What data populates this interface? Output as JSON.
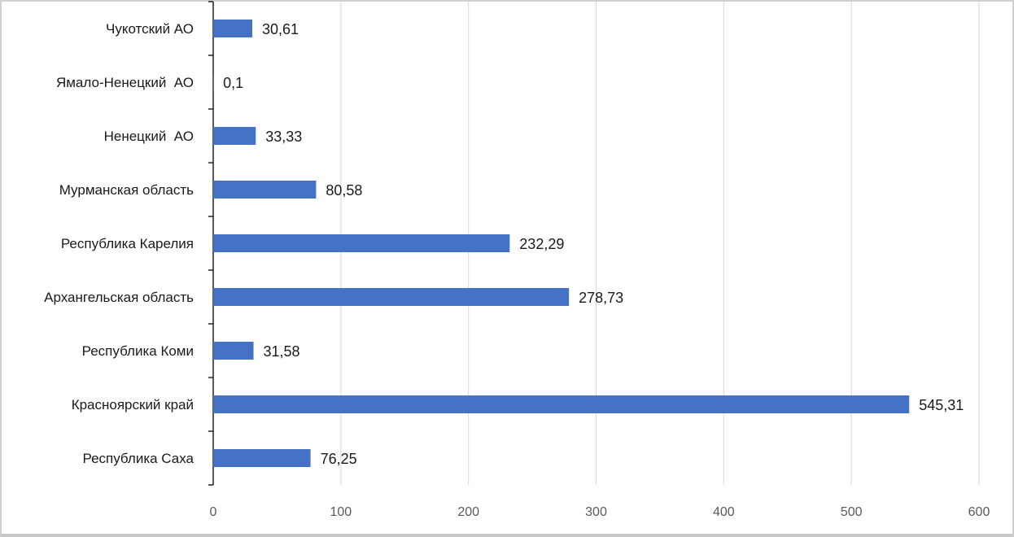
{
  "chart_data": {
    "type": "bar",
    "orientation": "horizontal",
    "categories": [
      "Чукотский АО",
      "Ямало-Ненецкий  АО",
      "Ненецкий  АО",
      "Мурманская область",
      "Республика Карелия",
      "Архангельская область",
      "Республика Коми",
      "Красноярский край",
      "Республика Саха"
    ],
    "values": [
      30.61,
      0.1,
      33.33,
      80.58,
      232.29,
      278.73,
      31.58,
      545.31,
      76.25
    ],
    "data_labels": [
      "30,61",
      "0,1",
      "33,33",
      "80,58",
      "232,29",
      "278,73",
      "31,58",
      "545,31",
      "76,25"
    ],
    "title": "",
    "xlabel": "",
    "ylabel": "",
    "xlim": [
      0,
      600
    ],
    "xticks": [
      "0",
      "100",
      "200",
      "300",
      "400",
      "500",
      "600"
    ],
    "grid": "vertical",
    "legend": "none",
    "bar_color": "#4472c4"
  }
}
